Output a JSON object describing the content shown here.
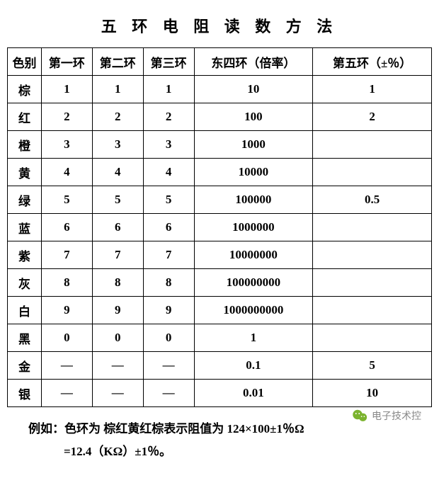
{
  "title": "五 环 电 阻 读 数 方 法",
  "columns": [
    "色别",
    "第一环",
    "第二环",
    "第三环",
    "东四环（倍率）",
    "第五环（±％）"
  ],
  "rows": [
    [
      "棕",
      "1",
      "1",
      "1",
      "10",
      "1"
    ],
    [
      "红",
      "2",
      "2",
      "2",
      "100",
      "2"
    ],
    [
      "橙",
      "3",
      "3",
      "3",
      "1000",
      ""
    ],
    [
      "黄",
      "4",
      "4",
      "4",
      "10000",
      ""
    ],
    [
      "绿",
      "5",
      "5",
      "5",
      "100000",
      "0.5"
    ],
    [
      "蓝",
      "6",
      "6",
      "6",
      "1000000",
      ""
    ],
    [
      "紫",
      "7",
      "7",
      "7",
      "10000000",
      ""
    ],
    [
      "灰",
      "8",
      "8",
      "8",
      "100000000",
      ""
    ],
    [
      "白",
      "9",
      "9",
      "9",
      "1000000000",
      ""
    ],
    [
      "黑",
      "0",
      "0",
      "0",
      "1",
      ""
    ],
    [
      "金",
      "—",
      "—",
      "—",
      "0.1",
      "5"
    ],
    [
      "银",
      "—",
      "—",
      "—",
      "0.01",
      "10"
    ]
  ],
  "footer_line1": "例如：色环为 棕红黄红棕表示阻值为 124×100±1％Ω",
  "footer_line2": "=12.4（KΩ）±1％。",
  "attribution": "电子技术控",
  "colors": {
    "border": "#000000",
    "text": "#000000",
    "background": "#ffffff",
    "attribution_text": "#888888",
    "wechat_green": "#7bb32e"
  }
}
